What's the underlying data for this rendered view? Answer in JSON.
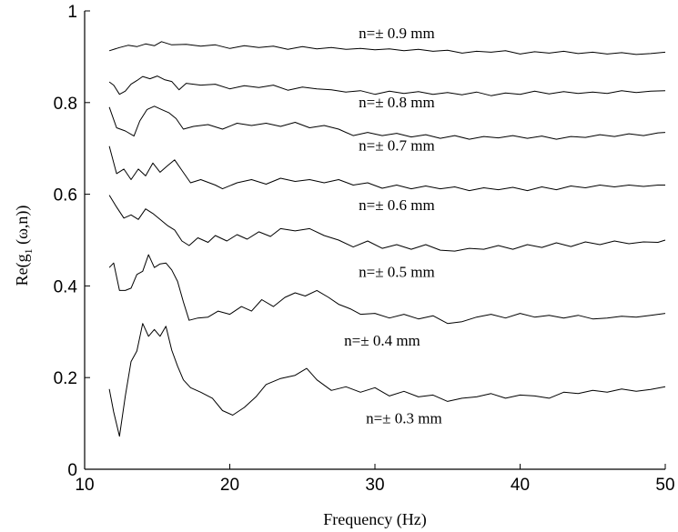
{
  "chart_data": {
    "type": "line",
    "title": "",
    "xlabel": "Frequency (Hz)",
    "ylabel_prefix": "Re(g",
    "ylabel_sub": "1",
    "ylabel_suffix": " (ω,n))",
    "xlim": [
      10,
      50
    ],
    "ylim": [
      0,
      1
    ],
    "xticks": [
      10,
      20,
      30,
      40,
      50
    ],
    "yticks": [
      0,
      0.2,
      0.4,
      0.6,
      0.8,
      1
    ],
    "ytick_labels": [
      "0",
      "0.2",
      "0.4",
      "0.6",
      "0.8",
      "1"
    ],
    "grid": false,
    "series": [
      {
        "name": "n=± 0.9 mm",
        "x": [
          11.7,
          12.4,
          13.0,
          13.6,
          14.2,
          14.8,
          15.3,
          16.0,
          17.0,
          18.0,
          19.0,
          20.0,
          21.0,
          22.0,
          23.0,
          24.0,
          25.0,
          26.0,
          27.0,
          28.0,
          29.0,
          30.0,
          31.0,
          32.0,
          33.0,
          34.0,
          35.0,
          36.0,
          37.0,
          38.0,
          39.0,
          40.0,
          41.0,
          42.0,
          43.0,
          44.0,
          45.0,
          46.0,
          47.0,
          48.0,
          49.0,
          50.0
        ],
        "y": [
          0.913,
          0.92,
          0.925,
          0.922,
          0.928,
          0.924,
          0.933,
          0.926,
          0.927,
          0.923,
          0.926,
          0.918,
          0.924,
          0.92,
          0.923,
          0.916,
          0.922,
          0.917,
          0.92,
          0.916,
          0.918,
          0.915,
          0.917,
          0.913,
          0.916,
          0.912,
          0.914,
          0.908,
          0.912,
          0.91,
          0.913,
          0.906,
          0.911,
          0.908,
          0.912,
          0.907,
          0.91,
          0.906,
          0.909,
          0.905,
          0.907,
          0.91
        ]
      },
      {
        "name": "n=± 0.8 mm",
        "x": [
          11.7,
          12.0,
          12.4,
          12.8,
          13.2,
          13.6,
          14.0,
          14.5,
          15.0,
          15.5,
          16.0,
          16.5,
          17.0,
          18.0,
          19.0,
          20.0,
          21.0,
          22.0,
          23.0,
          24.0,
          25.0,
          26.0,
          27.0,
          28.0,
          29.0,
          30.0,
          31.0,
          32.0,
          33.0,
          34.0,
          35.0,
          36.0,
          37.0,
          38.0,
          39.0,
          40.0,
          41.0,
          42.0,
          43.0,
          44.0,
          45.0,
          46.0,
          47.0,
          48.0,
          49.0,
          50.0
        ],
        "y": [
          0.845,
          0.838,
          0.818,
          0.825,
          0.84,
          0.848,
          0.857,
          0.852,
          0.858,
          0.85,
          0.846,
          0.828,
          0.842,
          0.838,
          0.84,
          0.83,
          0.837,
          0.833,
          0.838,
          0.827,
          0.834,
          0.83,
          0.828,
          0.823,
          0.826,
          0.818,
          0.825,
          0.82,
          0.824,
          0.818,
          0.822,
          0.817,
          0.823,
          0.815,
          0.821,
          0.818,
          0.825,
          0.819,
          0.824,
          0.82,
          0.823,
          0.82,
          0.826,
          0.822,
          0.825,
          0.826
        ]
      },
      {
        "name": "n=± 0.7 mm",
        "x": [
          11.7,
          12.2,
          12.8,
          13.4,
          13.8,
          14.3,
          14.8,
          15.3,
          15.8,
          16.3,
          16.8,
          17.5,
          18.5,
          19.5,
          20.5,
          21.5,
          22.5,
          23.5,
          24.5,
          25.5,
          26.5,
          27.5,
          28.5,
          29.5,
          30.5,
          31.5,
          32.5,
          33.5,
          34.5,
          35.5,
          36.5,
          37.5,
          38.5,
          39.5,
          40.5,
          41.5,
          42.5,
          43.5,
          44.5,
          45.5,
          46.5,
          47.5,
          48.5,
          49.5,
          50.0
        ],
        "y": [
          0.79,
          0.745,
          0.738,
          0.727,
          0.76,
          0.785,
          0.792,
          0.785,
          0.778,
          0.765,
          0.742,
          0.748,
          0.752,
          0.742,
          0.755,
          0.75,
          0.755,
          0.748,
          0.757,
          0.745,
          0.75,
          0.742,
          0.728,
          0.735,
          0.728,
          0.733,
          0.725,
          0.73,
          0.722,
          0.728,
          0.72,
          0.726,
          0.723,
          0.728,
          0.722,
          0.727,
          0.72,
          0.726,
          0.724,
          0.73,
          0.726,
          0.732,
          0.728,
          0.734,
          0.735
        ]
      },
      {
        "name": "n=± 0.6 mm",
        "x": [
          11.7,
          12.2,
          12.7,
          13.2,
          13.7,
          14.2,
          14.7,
          15.2,
          15.7,
          16.2,
          16.7,
          17.3,
          18.0,
          19.0,
          19.5,
          20.5,
          21.5,
          22.5,
          23.5,
          24.5,
          25.5,
          26.5,
          27.5,
          28.5,
          29.5,
          30.5,
          31.5,
          32.5,
          33.5,
          34.5,
          35.5,
          36.5,
          37.5,
          38.5,
          39.5,
          40.5,
          41.5,
          42.5,
          43.5,
          44.5,
          45.5,
          46.5,
          47.5,
          48.5,
          49.5,
          50.0
        ],
        "y": [
          0.705,
          0.645,
          0.655,
          0.632,
          0.655,
          0.64,
          0.668,
          0.648,
          0.662,
          0.675,
          0.652,
          0.625,
          0.632,
          0.62,
          0.612,
          0.625,
          0.632,
          0.622,
          0.635,
          0.628,
          0.632,
          0.625,
          0.632,
          0.62,
          0.625,
          0.613,
          0.62,
          0.612,
          0.618,
          0.612,
          0.616,
          0.608,
          0.614,
          0.61,
          0.615,
          0.608,
          0.616,
          0.61,
          0.618,
          0.614,
          0.62,
          0.616,
          0.62,
          0.617,
          0.62,
          0.62
        ]
      },
      {
        "name": "n=± 0.5 mm",
        "x": [
          11.7,
          12.2,
          12.7,
          13.2,
          13.7,
          14.2,
          14.7,
          15.2,
          15.7,
          16.2,
          16.7,
          17.2,
          17.8,
          18.5,
          19.0,
          19.8,
          20.5,
          21.2,
          22.0,
          22.8,
          23.5,
          24.5,
          25.5,
          26.5,
          27.5,
          28.5,
          29.5,
          30.5,
          31.5,
          32.5,
          33.5,
          34.5,
          35.5,
          36.5,
          37.5,
          38.5,
          39.5,
          40.5,
          41.5,
          42.5,
          43.5,
          44.5,
          45.5,
          46.5,
          47.5,
          48.5,
          49.5,
          50.0
        ],
        "y": [
          0.598,
          0.572,
          0.548,
          0.555,
          0.545,
          0.568,
          0.558,
          0.545,
          0.532,
          0.522,
          0.498,
          0.488,
          0.505,
          0.495,
          0.51,
          0.498,
          0.512,
          0.502,
          0.518,
          0.508,
          0.525,
          0.52,
          0.525,
          0.51,
          0.5,
          0.485,
          0.498,
          0.482,
          0.49,
          0.48,
          0.49,
          0.478,
          0.476,
          0.482,
          0.48,
          0.488,
          0.48,
          0.49,
          0.484,
          0.494,
          0.486,
          0.496,
          0.49,
          0.498,
          0.492,
          0.496,
          0.495,
          0.5
        ]
      },
      {
        "name": "n=± 0.4 mm",
        "x": [
          11.7,
          12.0,
          12.4,
          12.8,
          13.2,
          13.6,
          14.0,
          14.4,
          14.8,
          15.2,
          15.6,
          16.0,
          16.4,
          16.8,
          17.2,
          17.8,
          18.5,
          19.2,
          20.0,
          20.8,
          21.5,
          22.2,
          23.0,
          23.8,
          24.5,
          25.2,
          26.0,
          26.8,
          27.5,
          28.3,
          29.0,
          30.0,
          31.0,
          32.0,
          33.0,
          34.0,
          35.0,
          36.0,
          37.0,
          38.0,
          39.0,
          40.0,
          41.0,
          42.0,
          43.0,
          44.0,
          45.0,
          46.0,
          47.0,
          48.0,
          49.0,
          50.0
        ],
        "y": [
          0.44,
          0.45,
          0.39,
          0.39,
          0.395,
          0.425,
          0.432,
          0.468,
          0.44,
          0.448,
          0.45,
          0.435,
          0.41,
          0.365,
          0.325,
          0.33,
          0.332,
          0.345,
          0.338,
          0.355,
          0.345,
          0.37,
          0.355,
          0.375,
          0.385,
          0.378,
          0.39,
          0.375,
          0.36,
          0.35,
          0.338,
          0.34,
          0.33,
          0.338,
          0.328,
          0.335,
          0.318,
          0.322,
          0.332,
          0.338,
          0.33,
          0.34,
          0.332,
          0.336,
          0.33,
          0.336,
          0.328,
          0.33,
          0.334,
          0.332,
          0.336,
          0.34
        ]
      },
      {
        "name": "n=± 0.3 mm",
        "x": [
          11.7,
          12.0,
          12.4,
          12.8,
          13.2,
          13.6,
          14.0,
          14.4,
          14.8,
          15.2,
          15.6,
          16.0,
          16.4,
          16.8,
          17.3,
          18.0,
          18.8,
          19.5,
          20.2,
          21.0,
          21.8,
          22.5,
          23.5,
          24.5,
          25.3,
          26.0,
          27.0,
          28.0,
          29.0,
          30.0,
          31.0,
          32.0,
          33.0,
          34.0,
          35.0,
          36.0,
          37.0,
          38.0,
          39.0,
          40.0,
          41.0,
          42.0,
          43.0,
          44.0,
          45.0,
          46.0,
          47.0,
          48.0,
          49.0,
          50.0
        ],
        "y": [
          0.175,
          0.125,
          0.072,
          0.16,
          0.235,
          0.258,
          0.318,
          0.29,
          0.305,
          0.29,
          0.312,
          0.26,
          0.225,
          0.195,
          0.178,
          0.168,
          0.155,
          0.128,
          0.118,
          0.135,
          0.158,
          0.185,
          0.198,
          0.205,
          0.22,
          0.195,
          0.172,
          0.18,
          0.168,
          0.178,
          0.16,
          0.17,
          0.158,
          0.162,
          0.148,
          0.155,
          0.158,
          0.165,
          0.155,
          0.162,
          0.16,
          0.155,
          0.168,
          0.165,
          0.172,
          0.168,
          0.175,
          0.17,
          0.174,
          0.18
        ]
      }
    ],
    "series_label_anchor": [
      {
        "x": 31.5,
        "y": 0.94
      },
      {
        "x": 31.5,
        "y": 0.79
      },
      {
        "x": 31.5,
        "y": 0.695
      },
      {
        "x": 31.5,
        "y": 0.565
      },
      {
        "x": 31.5,
        "y": 0.42
      },
      {
        "x": 30.5,
        "y": 0.27
      },
      {
        "x": 32.0,
        "y": 0.1
      }
    ]
  }
}
